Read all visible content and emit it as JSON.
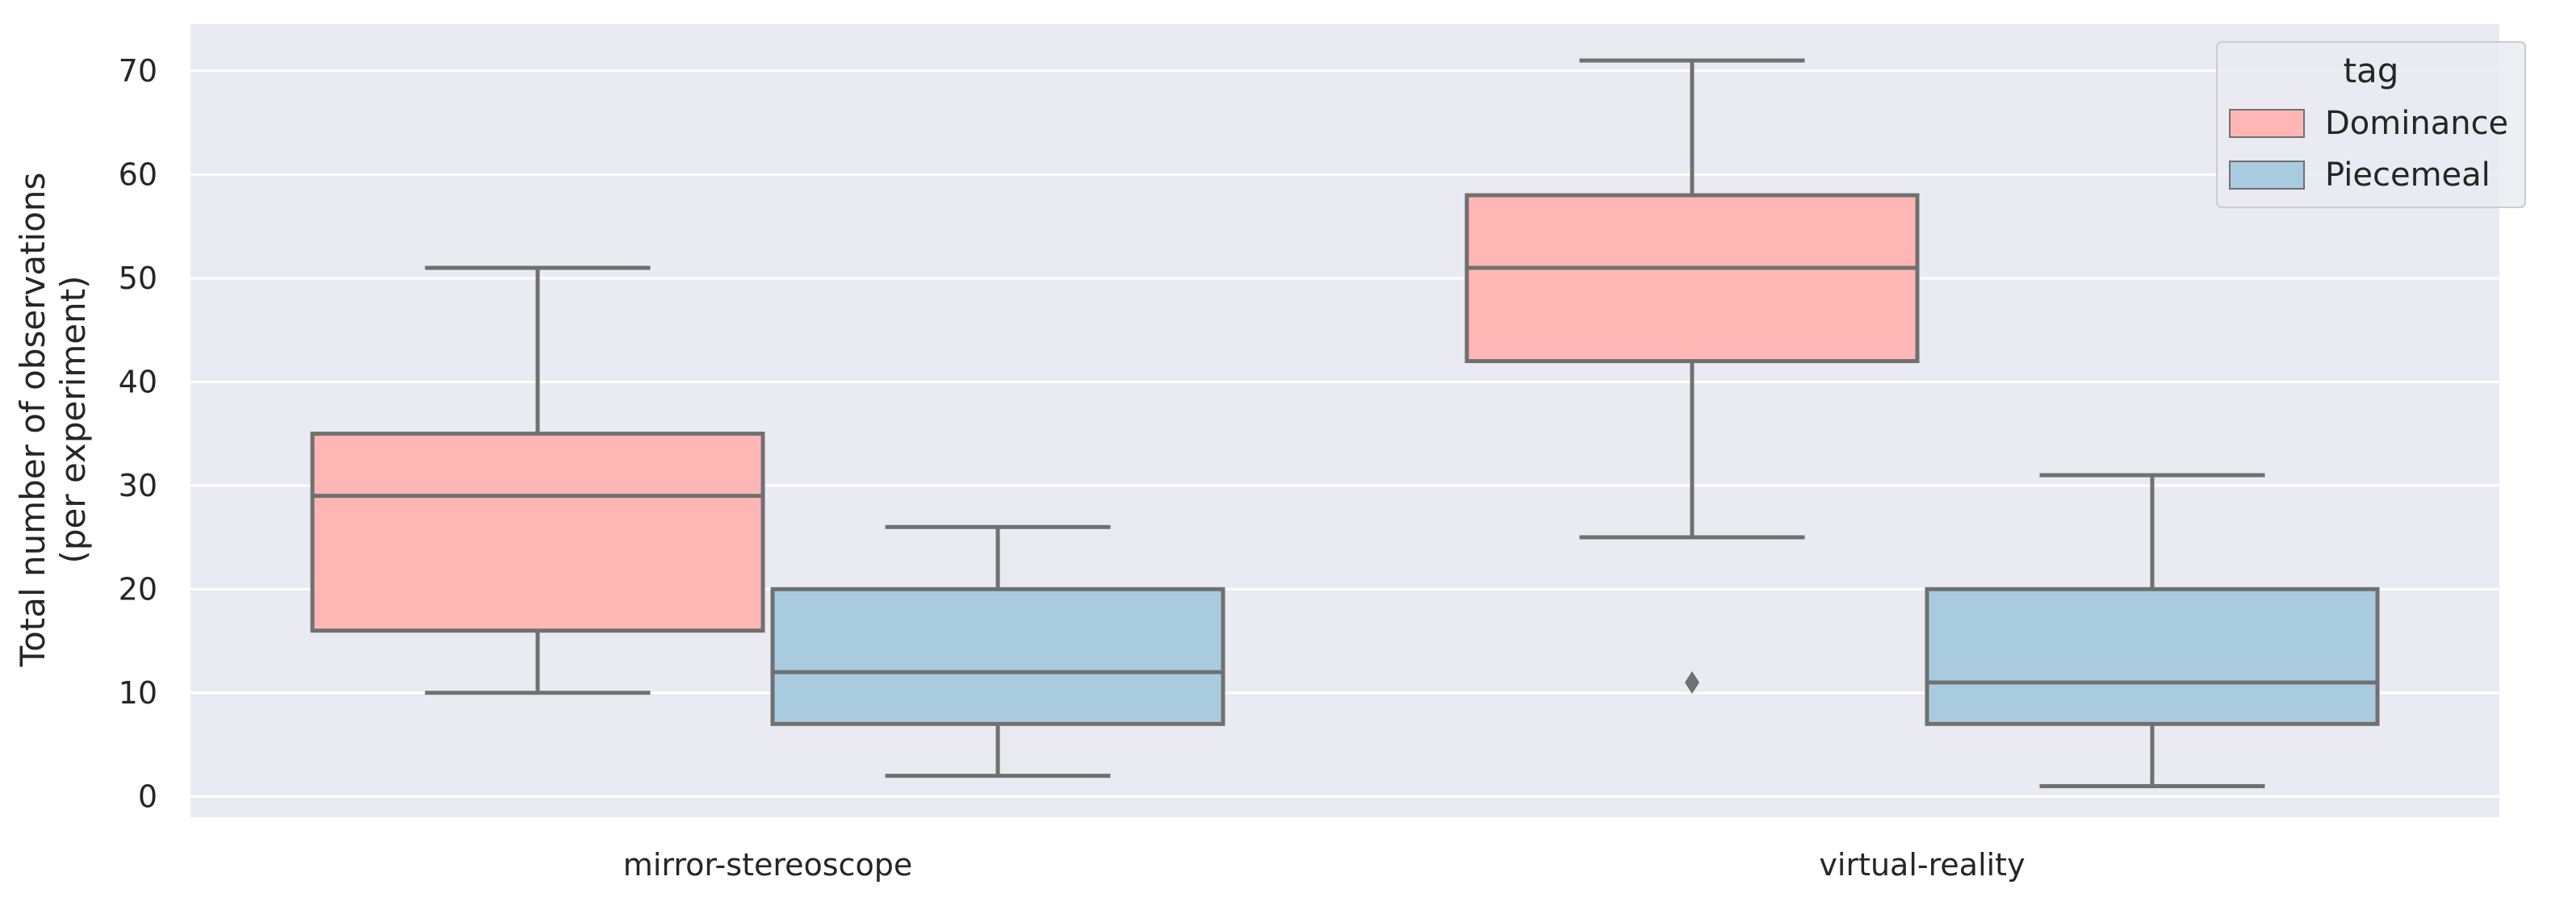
{
  "chart_data": {
    "type": "box",
    "title": "",
    "xlabel": "",
    "ylabel": "Total number of observations",
    "ylabel_line2": "(per experiment)",
    "categories": [
      "mirror-stereoscope",
      "virtual-reality"
    ],
    "yticks": [
      0,
      10,
      20,
      30,
      40,
      50,
      60,
      70
    ],
    "ylim": [
      -2,
      74.5
    ],
    "grid": true,
    "legend": {
      "title": "tag",
      "position": "top-right"
    },
    "series": [
      {
        "name": "Dominance",
        "color": "#ffb7b5",
        "boxes": [
          {
            "category": "mirror-stereoscope",
            "whisker_low": 10,
            "q1": 16,
            "median": 29,
            "q3": 35,
            "whisker_high": 51,
            "outliers": []
          },
          {
            "category": "virtual-reality",
            "whisker_low": 25,
            "q1": 42,
            "median": 51,
            "q3": 58,
            "whisker_high": 71,
            "outliers": [
              11
            ]
          }
        ]
      },
      {
        "name": "Piecemeal",
        "color": "#a9cbe0",
        "boxes": [
          {
            "category": "mirror-stereoscope",
            "whisker_low": 2,
            "q1": 7,
            "median": 12,
            "q3": 20,
            "whisker_high": 26,
            "outliers": []
          },
          {
            "category": "virtual-reality",
            "whisker_low": 1,
            "q1": 7,
            "median": 11,
            "q3": 20,
            "whisker_high": 31,
            "outliers": []
          }
        ]
      }
    ],
    "colors": {
      "background": "#eaeaf2",
      "grid": "#ffffff",
      "line": "#707070"
    }
  }
}
